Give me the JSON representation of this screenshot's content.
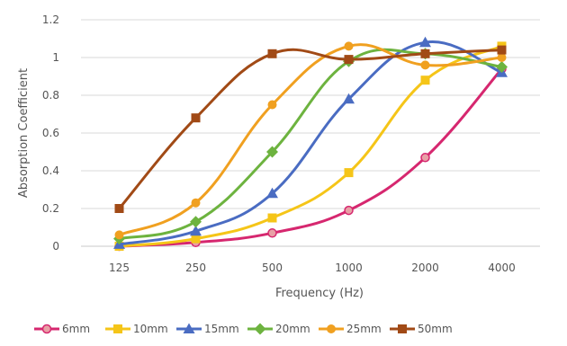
{
  "chart_data": {
    "type": "line",
    "title": "",
    "xlabel": "Frequency (Hz)",
    "ylabel": "Absorption Coefficient",
    "categories": [
      "125",
      "250",
      "500",
      "1000",
      "2000",
      "4000"
    ],
    "ylim": [
      0,
      1.2
    ],
    "yticks": [
      "0",
      "0.2",
      "0.4",
      "0.6",
      "0.8",
      "1",
      "1.2"
    ],
    "grid": "horizontal",
    "legend_position": "bottom",
    "smooth": true,
    "series": [
      {
        "name": "6mm",
        "values": [
          0.0,
          0.02,
          0.07,
          0.19,
          0.47,
          0.94
        ],
        "color": "#d6276f",
        "marker": "circle-open"
      },
      {
        "name": "10mm",
        "values": [
          0.0,
          0.04,
          0.15,
          0.39,
          0.88,
          1.06
        ],
        "color": "#f5c518",
        "marker": "square"
      },
      {
        "name": "15mm",
        "values": [
          0.01,
          0.08,
          0.28,
          0.78,
          1.08,
          0.92
        ],
        "color": "#4a6cc2",
        "marker": "triangle"
      },
      {
        "name": "20mm",
        "values": [
          0.04,
          0.13,
          0.5,
          0.98,
          1.02,
          0.95
        ],
        "color": "#6db33f",
        "marker": "diamond"
      },
      {
        "name": "25mm",
        "values": [
          0.06,
          0.23,
          0.75,
          1.06,
          0.96,
          1.0
        ],
        "color": "#f0a020",
        "marker": "circle"
      },
      {
        "name": "50mm",
        "values": [
          0.2,
          0.68,
          1.02,
          0.99,
          1.02,
          1.04
        ],
        "color": "#a14a16",
        "marker": "square"
      }
    ]
  }
}
